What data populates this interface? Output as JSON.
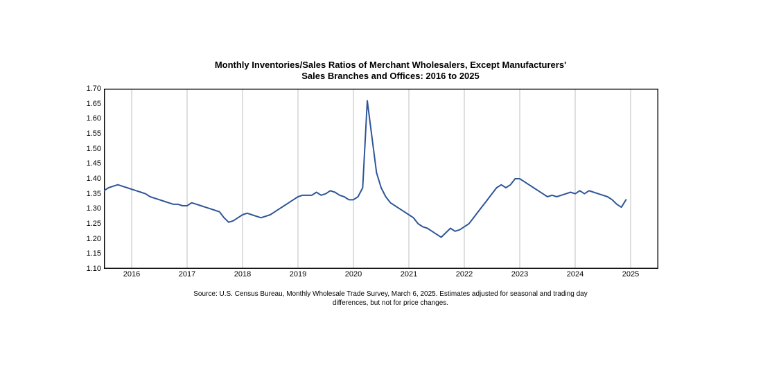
{
  "chart": {
    "type": "line",
    "title_line1": "Monthly Inventories/Sales Ratios of Merchant Wholesalers, Except Manufacturers'",
    "title_line2": "Sales Branches and Offices: 2016 to 2025",
    "title_fontsize": 13,
    "source_line1": "Source: U.S. Census Bureau, Monthly Wholesale Trade Survey, March 6, 2025. Estimates adjusted for seasonal and trading day",
    "source_line2": "differences, but not for price changes.",
    "source_fontsize": 10,
    "background_color": "#ffffff",
    "plot_border_color": "#000000",
    "plot_border_width": 1.4,
    "grid_color": "#bfbfbf",
    "grid_width": 1,
    "line_color": "#2f5597",
    "line_width": 2,
    "axis_label_fontsize": 11,
    "ylim": [
      1.1,
      1.7
    ],
    "yticks": [
      1.1,
      1.15,
      1.2,
      1.25,
      1.3,
      1.35,
      1.4,
      1.45,
      1.5,
      1.55,
      1.6,
      1.65,
      1.7
    ],
    "ytick_labels": [
      "1.10",
      "1.15",
      "1.20",
      "1.25",
      "1.30",
      "1.35",
      "1.40",
      "1.45",
      "1.50",
      "1.55",
      "1.60",
      "1.65",
      "1.70"
    ],
    "x_start": 2015.5,
    "x_end": 2025.5,
    "xticks": [
      2016,
      2017,
      2018,
      2019,
      2020,
      2021,
      2022,
      2023,
      2024,
      2025
    ],
    "xtick_labels": [
      "2016",
      "2017",
      "2018",
      "2019",
      "2020",
      "2021",
      "2022",
      "2023",
      "2024",
      "2025"
    ],
    "series": {
      "x": [
        2015.5,
        2015.583,
        2015.667,
        2015.75,
        2015.833,
        2015.917,
        2016.0,
        2016.083,
        2016.167,
        2016.25,
        2016.333,
        2016.417,
        2016.5,
        2016.583,
        2016.667,
        2016.75,
        2016.833,
        2016.917,
        2017.0,
        2017.083,
        2017.167,
        2017.25,
        2017.333,
        2017.417,
        2017.5,
        2017.583,
        2017.667,
        2017.75,
        2017.833,
        2017.917,
        2018.0,
        2018.083,
        2018.167,
        2018.25,
        2018.333,
        2018.417,
        2018.5,
        2018.583,
        2018.667,
        2018.75,
        2018.833,
        2018.917,
        2019.0,
        2019.083,
        2019.167,
        2019.25,
        2019.333,
        2019.417,
        2019.5,
        2019.583,
        2019.667,
        2019.75,
        2019.833,
        2019.917,
        2020.0,
        2020.083,
        2020.167,
        2020.25,
        2020.333,
        2020.417,
        2020.5,
        2020.583,
        2020.667,
        2020.75,
        2020.833,
        2020.917,
        2021.0,
        2021.083,
        2021.167,
        2021.25,
        2021.333,
        2021.417,
        2021.5,
        2021.583,
        2021.667,
        2021.75,
        2021.833,
        2021.917,
        2022.0,
        2022.083,
        2022.167,
        2022.25,
        2022.333,
        2022.417,
        2022.5,
        2022.583,
        2022.667,
        2022.75,
        2022.833,
        2022.917,
        2023.0,
        2023.083,
        2023.167,
        2023.25,
        2023.333,
        2023.417,
        2023.5,
        2023.583,
        2023.667,
        2023.75,
        2023.833,
        2023.917,
        2024.0,
        2024.083,
        2024.167,
        2024.25,
        2024.333,
        2024.417,
        2024.5,
        2024.583,
        2024.667,
        2024.75,
        2024.833,
        2024.917
      ],
      "y": [
        1.36,
        1.37,
        1.375,
        1.38,
        1.375,
        1.37,
        1.365,
        1.36,
        1.355,
        1.35,
        1.34,
        1.335,
        1.33,
        1.325,
        1.32,
        1.315,
        1.315,
        1.31,
        1.31,
        1.32,
        1.315,
        1.31,
        1.305,
        1.3,
        1.295,
        1.29,
        1.27,
        1.255,
        1.26,
        1.27,
        1.28,
        1.285,
        1.28,
        1.275,
        1.27,
        1.275,
        1.28,
        1.29,
        1.3,
        1.31,
        1.32,
        1.33,
        1.34,
        1.345,
        1.345,
        1.345,
        1.355,
        1.345,
        1.35,
        1.36,
        1.355,
        1.345,
        1.34,
        1.33,
        1.33,
        1.34,
        1.37,
        1.66,
        1.54,
        1.42,
        1.37,
        1.34,
        1.32,
        1.31,
        1.3,
        1.29,
        1.28,
        1.27,
        1.25,
        1.24,
        1.235,
        1.225,
        1.215,
        1.205,
        1.22,
        1.235,
        1.225,
        1.23,
        1.24,
        1.25,
        1.27,
        1.29,
        1.31,
        1.33,
        1.35,
        1.37,
        1.38,
        1.37,
        1.38,
        1.4,
        1.4,
        1.39,
        1.38,
        1.37,
        1.36,
        1.35,
        1.34,
        1.345,
        1.34,
        1.345,
        1.35,
        1.355,
        1.35,
        1.36,
        1.35,
        1.36,
        1.355,
        1.35,
        1.345,
        1.34,
        1.33,
        1.315,
        1.305,
        1.33
      ]
    }
  }
}
